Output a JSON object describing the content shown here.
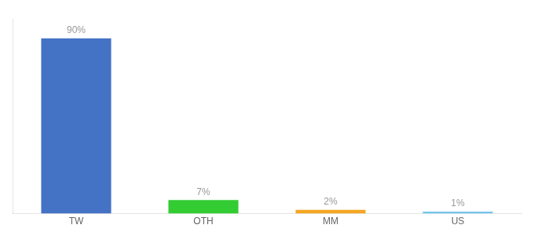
{
  "chart_data": {
    "type": "bar",
    "categories": [
      "TW",
      "OTH",
      "MM",
      "US"
    ],
    "values": [
      90,
      7,
      2,
      1
    ],
    "value_labels": [
      "90%",
      "7%",
      "2%",
      "1%"
    ],
    "colors": [
      "#4472c4",
      "#33cc33",
      "#f5a623",
      "#74c5e8"
    ],
    "ylim": [
      0,
      100
    ],
    "grid": false,
    "tick_labels": "x",
    "data_labels": true
  }
}
